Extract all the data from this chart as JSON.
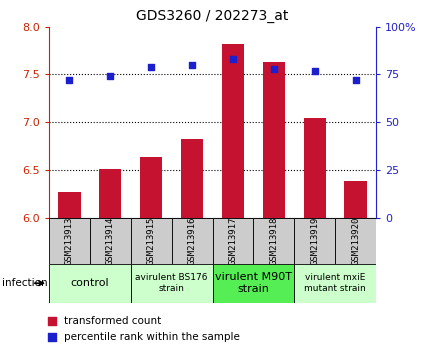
{
  "title": "GDS3260 / 202273_at",
  "samples": [
    "GSM213913",
    "GSM213914",
    "GSM213915",
    "GSM213916",
    "GSM213917",
    "GSM213918",
    "GSM213919",
    "GSM213920"
  ],
  "red_values": [
    6.27,
    6.51,
    6.63,
    6.82,
    7.82,
    7.63,
    7.04,
    6.38
  ],
  "blue_values": [
    72,
    74,
    79,
    80,
    83,
    78,
    77,
    72
  ],
  "ylim_left": [
    6.0,
    8.0
  ],
  "ylim_right": [
    0,
    100
  ],
  "yticks_left": [
    6.0,
    6.5,
    7.0,
    7.5,
    8.0
  ],
  "yticks_right": [
    0,
    25,
    50,
    75,
    100
  ],
  "ytick_labels_right": [
    "0",
    "25",
    "50",
    "75",
    "100%"
  ],
  "hlines": [
    6.5,
    7.0,
    7.5
  ],
  "bar_color": "#C41230",
  "dot_color": "#1B1FCC",
  "left_axis_color": "#CC2200",
  "right_axis_color": "#2222CC",
  "groups": [
    {
      "label": "control",
      "span": [
        0,
        2
      ],
      "color": "#ccffcc",
      "fontsize": 8
    },
    {
      "label": "avirulent BS176\nstrain",
      "span": [
        2,
        4
      ],
      "color": "#ccffcc",
      "fontsize": 6.5
    },
    {
      "label": "virulent M90T\nstrain",
      "span": [
        4,
        6
      ],
      "color": "#55ee55",
      "fontsize": 8
    },
    {
      "label": "virulent mxiE\nmutant strain",
      "span": [
        6,
        8
      ],
      "color": "#ccffcc",
      "fontsize": 6.5
    }
  ],
  "infection_label": "infection",
  "legend_red": "transformed count",
  "legend_blue": "percentile rank within the sample",
  "bar_width": 0.55,
  "sample_bg_color": "#cccccc"
}
